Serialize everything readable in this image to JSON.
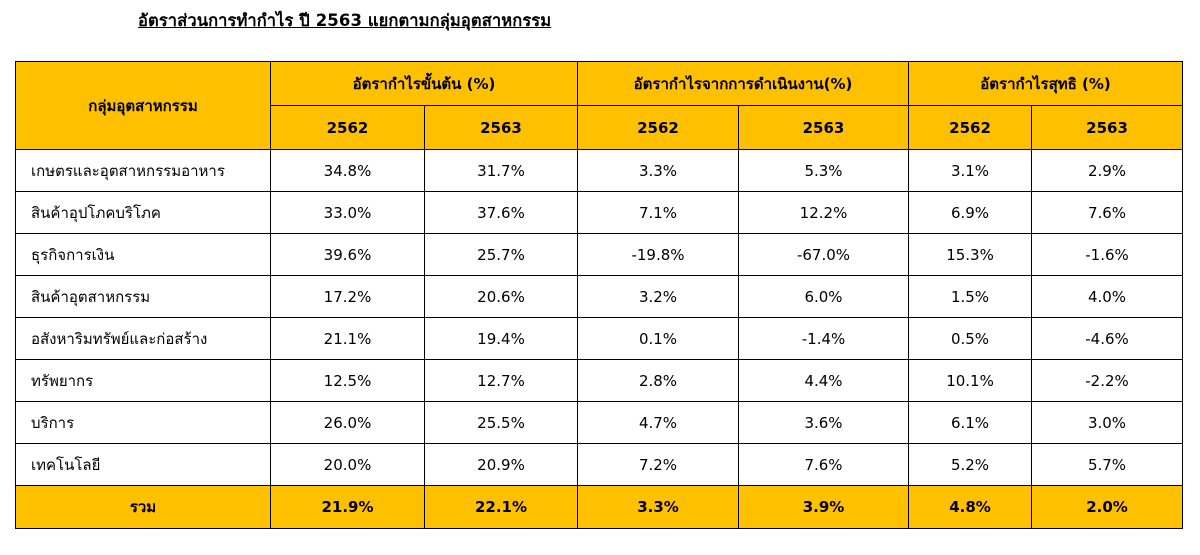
{
  "title": "อัตราส่วนการทำกำไร ปี 2563 แยกตามกลุ่มอุตสาหกรรม",
  "header": {
    "group_label": "กลุ่มอุตสาหกรรม",
    "metrics": [
      "อัตรากำไรขั้นต้น (%)",
      "อัตรากำไรจากการดำเนินงาน(%)",
      "อัตรากำไรสุทธิ (%)"
    ],
    "years": [
      "2562",
      "2563",
      "2562",
      "2563",
      "2562",
      "2563"
    ]
  },
  "rows": [
    {
      "name": "เกษตรและอุตสาหกรรมอาหาร",
      "values": [
        "34.8%",
        "31.7%",
        "3.3%",
        "5.3%",
        "3.1%",
        "2.9%"
      ]
    },
    {
      "name": "สินค้าอุปโภคบริโภค",
      "values": [
        "33.0%",
        "37.6%",
        "7.1%",
        "12.2%",
        "6.9%",
        "7.6%"
      ]
    },
    {
      "name": "ธุรกิจการเงิน",
      "values": [
        "39.6%",
        "25.7%",
        "-19.8%",
        "-67.0%",
        "15.3%",
        "-1.6%"
      ]
    },
    {
      "name": "สินค้าอุตสาหกรรม",
      "values": [
        "17.2%",
        "20.6%",
        "3.2%",
        "6.0%",
        "1.5%",
        "4.0%"
      ]
    },
    {
      "name": "อสังหาริมทรัพย์และก่อสร้าง",
      "values": [
        "21.1%",
        "19.4%",
        "0.1%",
        "-1.4%",
        "0.5%",
        "-4.6%"
      ]
    },
    {
      "name": "ทรัพยากร",
      "values": [
        "12.5%",
        "12.7%",
        "2.8%",
        "4.4%",
        "10.1%",
        "-2.2%"
      ]
    },
    {
      "name": "บริการ",
      "values": [
        "26.0%",
        "25.5%",
        "4.7%",
        "3.6%",
        "6.1%",
        "3.0%"
      ]
    },
    {
      "name": "เทคโนโลยี",
      "values": [
        "20.0%",
        "20.9%",
        "7.2%",
        "7.6%",
        "5.2%",
        "5.7%"
      ]
    }
  ],
  "total": {
    "name": "รวม",
    "values": [
      "21.9%",
      "22.1%",
      "3.3%",
      "3.9%",
      "4.8%",
      "2.0%"
    ]
  },
  "colors": {
    "header_fill": "#ffc000",
    "border": "#000000"
  }
}
